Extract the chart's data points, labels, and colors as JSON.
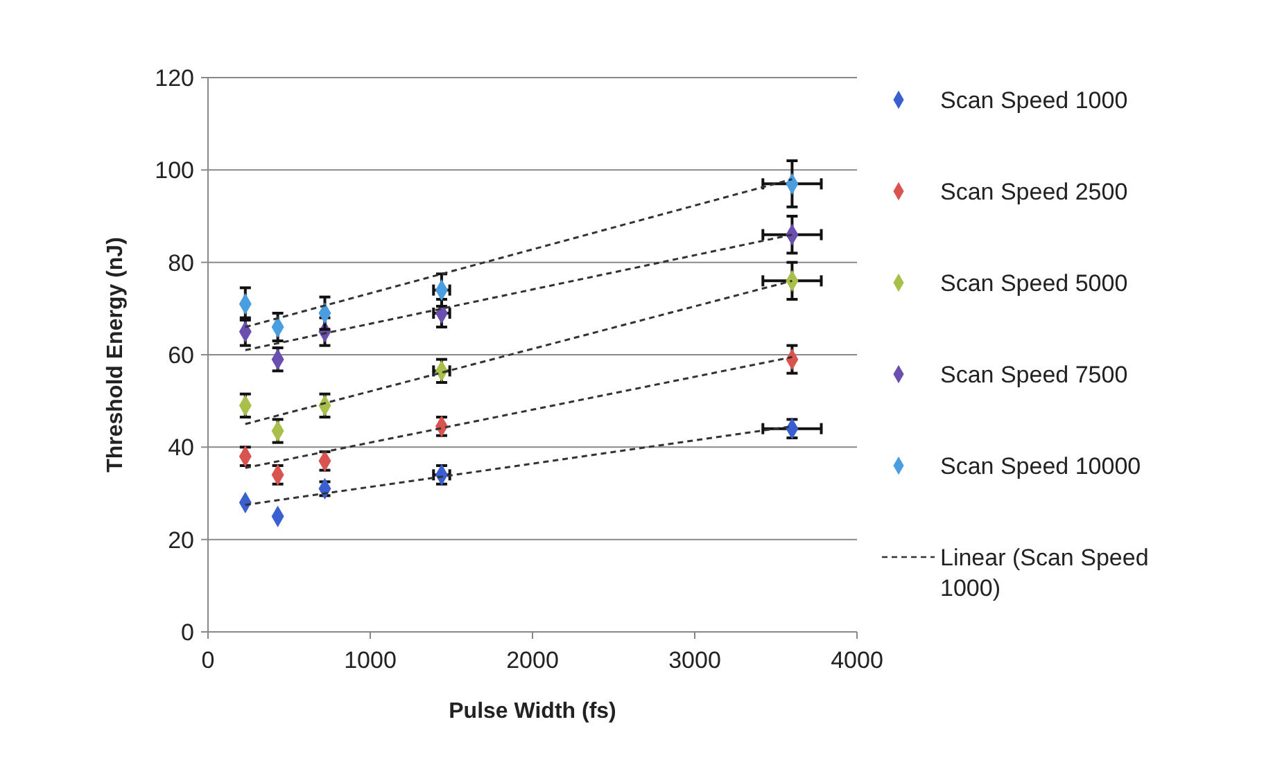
{
  "chart_data": {
    "type": "scatter",
    "xlabel": "Pulse Width (fs)",
    "ylabel": "Threshold Energy (nJ)",
    "xlim": [
      0,
      4000
    ],
    "xticks": [
      0,
      1000,
      2000,
      3000,
      4000
    ],
    "ylim": [
      0,
      120
    ],
    "yticks": [
      0,
      20,
      40,
      60,
      80,
      100,
      120
    ],
    "grid": "y",
    "legend": "right",
    "marker": "diamond",
    "x": [
      230,
      430,
      720,
      1440,
      3600
    ],
    "series": [
      {
        "name": "Scan Speed 1000",
        "color": "#3a5fd0",
        "values": [
          28,
          25,
          31,
          34,
          44
        ],
        "errors": [
          null,
          null,
          1.5,
          2,
          2
        ],
        "xerrors": [
          null,
          null,
          null,
          50,
          180
        ]
      },
      {
        "name": "Scan Speed 2500",
        "color": "#d9534f",
        "values": [
          38,
          34,
          37,
          44.5,
          59
        ],
        "errors": [
          2,
          2,
          2,
          2,
          3
        ]
      },
      {
        "name": "Scan Speed 5000",
        "color": "#a8c04a",
        "values": [
          49,
          43.5,
          49,
          56.5,
          76
        ],
        "errors": [
          2.5,
          2.5,
          2.5,
          2.5,
          4
        ],
        "xerrors": [
          null,
          null,
          null,
          50,
          180
        ]
      },
      {
        "name": "Scan Speed 7500",
        "color": "#6a4fb0",
        "values": [
          65,
          59,
          65,
          69,
          86
        ],
        "errors": [
          3,
          2.5,
          3,
          3,
          4
        ],
        "xerrors": [
          null,
          null,
          null,
          50,
          180
        ]
      },
      {
        "name": "Scan Speed 10000",
        "color": "#4a9ee0",
        "values": [
          71,
          66,
          69,
          74,
          97
        ],
        "errors": [
          3.5,
          3,
          3.5,
          3.5,
          5
        ],
        "xerrors": [
          null,
          null,
          null,
          50,
          180
        ]
      },
      {
        "name": "Linear (Scan Speed 1000)",
        "type": "line",
        "line_style": "dashed",
        "marker": "none",
        "color": "#333333",
        "values": [
          27.5,
          null,
          null,
          null,
          44.5
        ]
      },
      {
        "type": "line",
        "line_style": "dashed",
        "marker": "none",
        "color": "#333333",
        "values": [
          35.5,
          null,
          null,
          null,
          59.5
        ]
      },
      {
        "type": "line",
        "line_style": "dashed",
        "marker": "none",
        "color": "#333333",
        "values": [
          45,
          null,
          null,
          null,
          76
        ]
      },
      {
        "type": "line",
        "line_style": "dashed",
        "marker": "none",
        "color": "#333333",
        "values": [
          61,
          null,
          null,
          null,
          86
        ]
      },
      {
        "type": "line",
        "line_style": "dashed",
        "marker": "none",
        "color": "#333333",
        "values": [
          66,
          null,
          null,
          null,
          98
        ]
      }
    ]
  }
}
